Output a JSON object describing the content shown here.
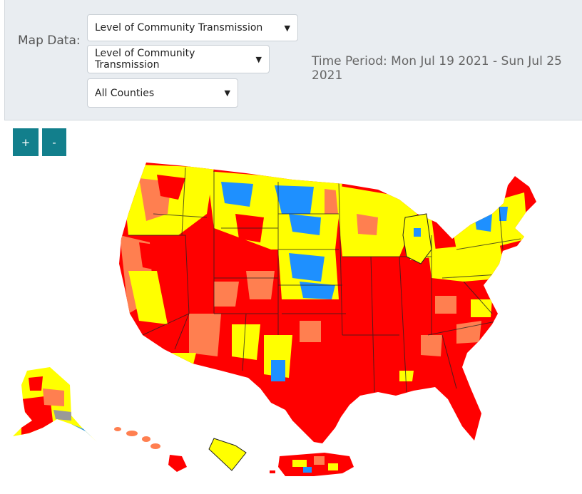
{
  "controls": {
    "map_data_label": "Map Data:",
    "select_1": "Level of Community Transmission",
    "select_2": "Level of Community Transmission",
    "select_3": "All Counties",
    "time_period": "Time Period: Mon Jul 19 2021 - Sun Jul 25 2021"
  },
  "zoom": {
    "in_label": "+",
    "out_label": "-"
  },
  "legend_colors": {
    "high": "#ff0000",
    "substantial": "#ff7f50",
    "moderate": "#ffff00",
    "low": "#1e90ff",
    "no_data": "#999999"
  },
  "map": {
    "regions": [
      "contiguous-us",
      "alaska",
      "hawaii",
      "guam",
      "puerto-rico"
    ]
  }
}
